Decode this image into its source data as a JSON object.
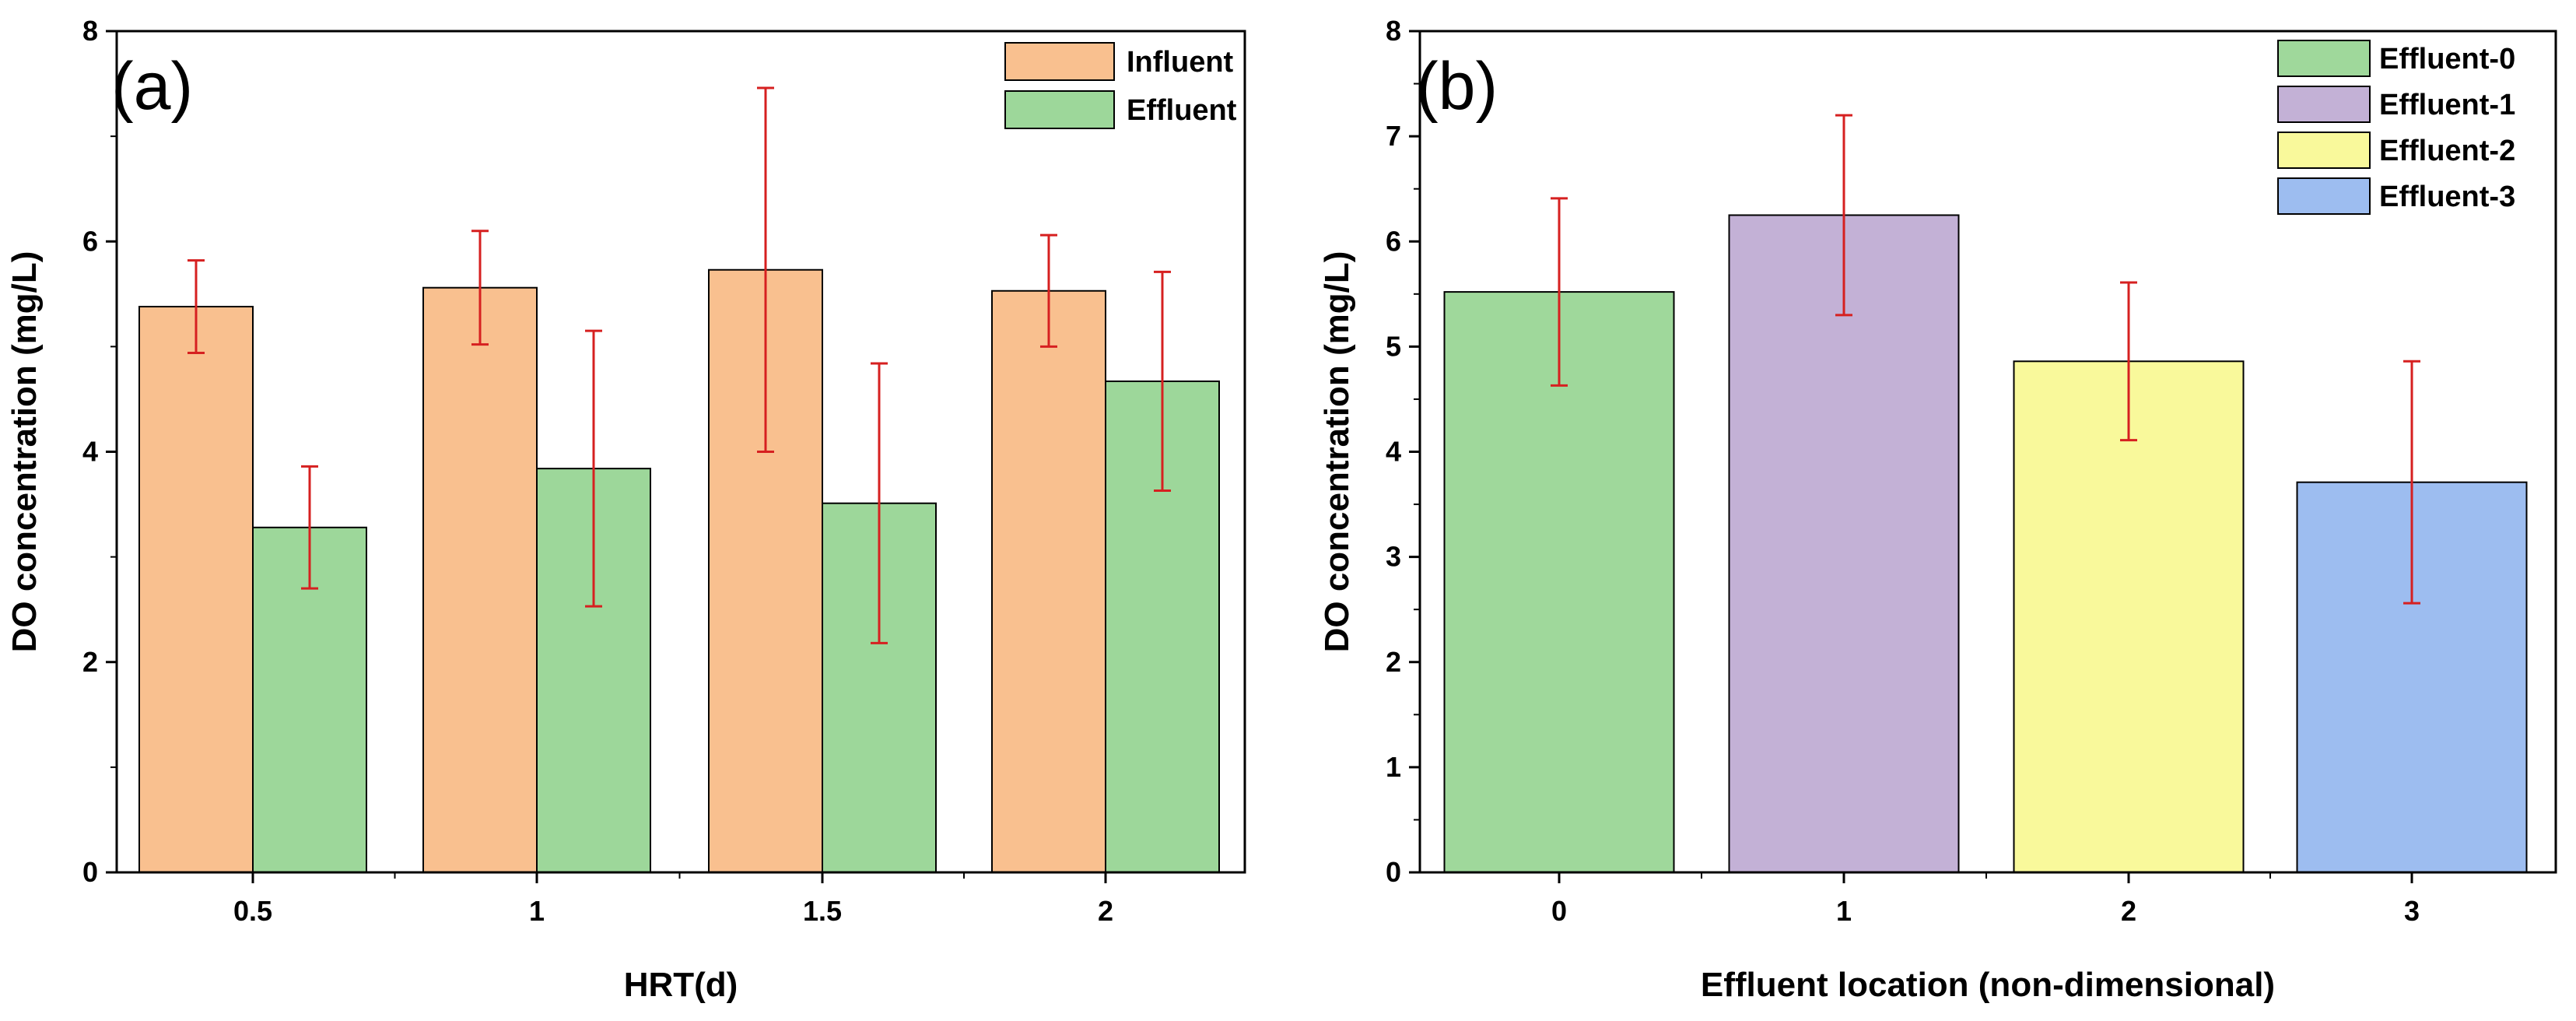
{
  "chart_data": [
    {
      "panel": "(a)",
      "type": "bar",
      "title": "",
      "xlabel": "HRT(d)",
      "ylabel": "DO concentration (mg/L)",
      "categories": [
        "0.5",
        "1",
        "1.5",
        "2"
      ],
      "ylim": [
        0,
        8
      ],
      "yticks": [
        "0",
        "2",
        "4",
        "6",
        "8"
      ],
      "grid": false,
      "legend": "top-right",
      "series": [
        {
          "name": "Influent",
          "color": "#f9c08f",
          "values": [
            5.38,
            5.56,
            5.73,
            5.53
          ],
          "errors": [
            0.44,
            0.54,
            1.73,
            0.53
          ]
        },
        {
          "name": "Effluent",
          "color": "#9dd79a",
          "values": [
            3.28,
            3.84,
            3.51,
            4.67
          ],
          "errors": [
            0.58,
            1.31,
            1.33,
            1.04
          ]
        }
      ],
      "error_bar_color": "#d62020"
    },
    {
      "panel": "(b)",
      "type": "bar",
      "title": "",
      "xlabel": "Effluent location (non-dimensional)",
      "ylabel": "DO concentration (mg/L)",
      "categories": [
        "0",
        "1",
        "2",
        "3"
      ],
      "ylim": [
        0,
        8
      ],
      "yticks": [
        "0",
        "1",
        "2",
        "3",
        "4",
        "5",
        "6",
        "7",
        "8"
      ],
      "grid": false,
      "legend": "top-right",
      "series": [
        {
          "name": "Effluent-0",
          "color": "#9fd89b",
          "value": 5.52,
          "error": 0.89
        },
        {
          "name": "Effluent-1",
          "color": "#c3b1d6",
          "value": 6.25,
          "error": 0.95
        },
        {
          "name": "Effluent-2",
          "color": "#f9f99b",
          "value": 4.86,
          "error": 0.75
        },
        {
          "name": "Effluent-3",
          "color": "#9dbdf0",
          "value": 3.71,
          "error": 1.15
        }
      ],
      "error_bar_color": "#d62020"
    }
  ]
}
